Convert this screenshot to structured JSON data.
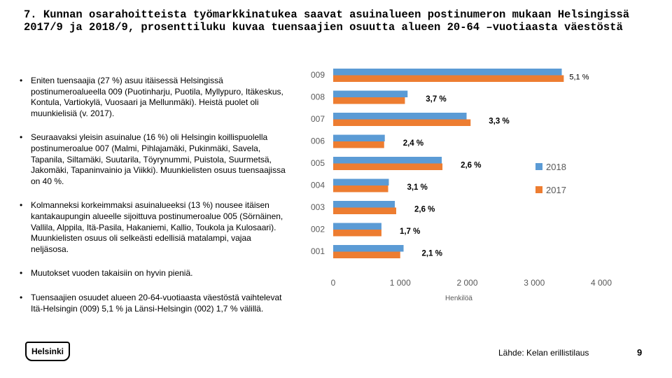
{
  "slide": {
    "title": "7. Kunnan osarahoitteista työmarkkinatukea saavat asuinalueen postinumeron mukaan Helsingissä 2017/9 ja 2018/9, prosenttiluku kuvaa tuensaajien osuutta alueen 20-64 –vuotiaasta väestöstä",
    "bullet_char": "•",
    "bullets": [
      "Eniten tuensaajia (27 %) asuu itäisessä Helsingissä postinumeroalueella 009 (Puotinharju, Puotila, Myllypuro, Itäkeskus, Kontula, Vartiokylä, Vuosaari ja Mellunmäki). Heistä puolet oli muunkielisiä (v. 2017).",
      "Seuraavaksi yleisin asuinalue (16 %) oli Helsingin koillispuolella postinumeroalue 007 (Malmi, Pihlajamäki, Pukinmäki, Savela, Tapanila, Siltamäki, Suutarila, Töyrynummi, Puistola, Suurmetsä, Jakomäki, Tapaninvainio ja Viikki). Muunkielisten osuus tuensaajissa on 40 %.",
      "Kolmanneksi korkeimmaksi asuinalueeksi (13 %) nousee itäisen kantakaupungin alueelle sijoittuva postinumeroalue 005 (Sörnäinen, Vallila, Alppila, Itä-Pasila, Hakaniemi, Kallio, Toukola ja Kulosaari). Muunkielisten osuus oli selkeästi edellisiä matalampi, vajaa neljäsosa.",
      "Muutokset vuoden takaisiin on hyvin pieniä.",
      "Tuensaajien osuudet alueen 20-64-vuotiaasta väestöstä vaihtelevat Itä-Helsingin (009) 5,1 % ja Länsi-Helsingin (002) 1,7 % välillä."
    ],
    "logo_text": "Helsinki",
    "source": "Lähde: Kelan erillistilaus",
    "page_number": "9"
  },
  "chart_data": {
    "type": "bar",
    "orientation": "horizontal",
    "categories": [
      "009",
      "008",
      "007",
      "006",
      "005",
      "004",
      "003",
      "002",
      "001"
    ],
    "series": [
      {
        "name": "2018",
        "color": "#5B9BD5",
        "values": [
          3410,
          1110,
          1990,
          770,
          1620,
          830,
          920,
          720,
          1050
        ]
      },
      {
        "name": "2017",
        "color": "#ED7D31",
        "values": [
          3440,
          1070,
          2050,
          760,
          1630,
          820,
          940,
          720,
          1000
        ]
      }
    ],
    "data_labels": [
      "5,1 %",
      "3,7 %",
      "3,3 %",
      "2,4 %",
      "2,6 %",
      "3,1 %",
      "2,6 %",
      "1,7 %",
      "2,1 %"
    ],
    "x_ticks": [
      0,
      1000,
      2000,
      3000,
      4000
    ],
    "x_tick_labels": [
      "0",
      "1 000",
      "2 000",
      "3 000",
      "4 000"
    ],
    "xlim": [
      0,
      4000
    ],
    "xlabel": "Henkilöä",
    "legend": [
      "2018",
      "2017"
    ],
    "legend_position": "right",
    "grid": false
  }
}
